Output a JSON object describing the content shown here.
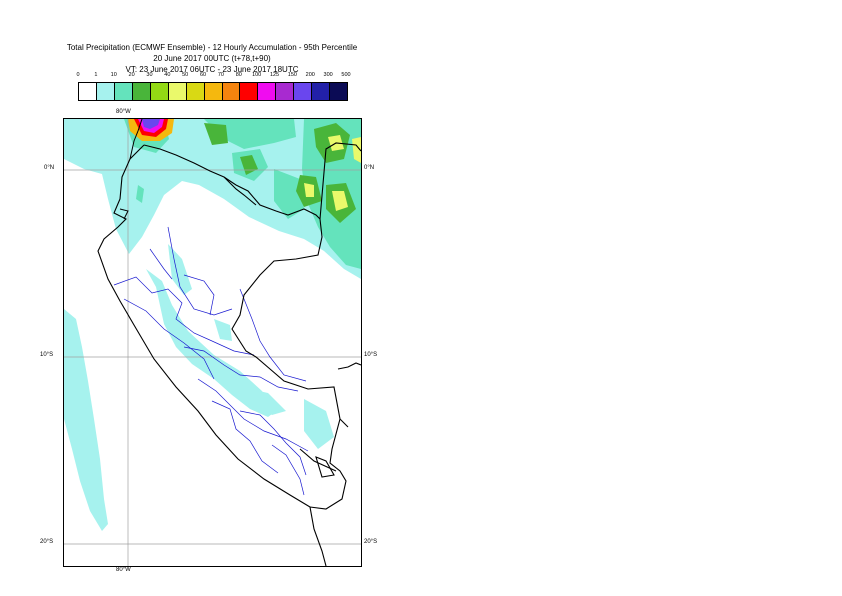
{
  "header": {
    "title_line1": "Total Precipitation (ECMWF Ensemble) - 12 Hourly Accumulation - 95th Percentile",
    "title_line2": "20 June 2017 00UTC (t+78,t+90)",
    "title_line3": "VT: 23 June 2017 06UTC - 23 June 2017 18UTC"
  },
  "legend": {
    "ticks": [
      "0",
      "1",
      "10",
      "20",
      "30",
      "40",
      "50",
      "60",
      "70",
      "80",
      "100",
      "125",
      "150",
      "200",
      "300",
      "500"
    ],
    "colors": [
      "#ffffff",
      "#a6f2ee",
      "#64e3bc",
      "#49b53a",
      "#93d914",
      "#eaf96b",
      "#d9d914",
      "#f5b80e",
      "#f5840e",
      "#ff0000",
      "#f00cf0",
      "#a82ad0",
      "#6a46ee",
      "#2220a8",
      "#0b0b55"
    ]
  },
  "map": {
    "lat_labels": [
      "0°N",
      "10°S",
      "20°S"
    ],
    "lon_label": "80°W"
  }
}
